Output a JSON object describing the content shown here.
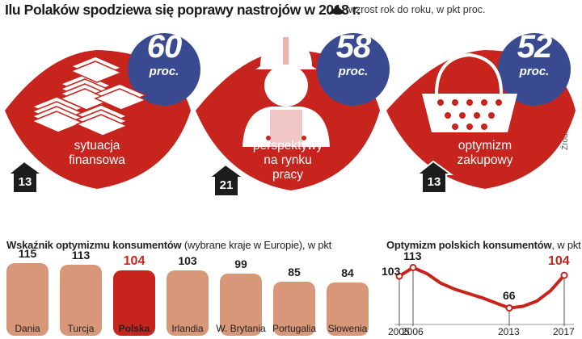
{
  "header": {
    "title": "Ilu Polaków spodziewa się poprawy nastrojów w 2018 r.",
    "legend": "wzrost rok do roku, w pkt proc.",
    "source": "Źródło: Nielsen"
  },
  "colors": {
    "red": "#c8241e",
    "navy": "#3a4a90",
    "dark": "#1c1c1c",
    "bar": "#d9977a",
    "bar_highlight": "#c8241e"
  },
  "blobs": [
    {
      "label_line1": "sytuacja",
      "label_line2": "finansowa",
      "label_line3": "",
      "value": "60",
      "unit": "proc.",
      "change": "13",
      "icon": "money-stack-icon"
    },
    {
      "label_line1": "perspektywy",
      "label_line2": "na rynku",
      "label_line3": "pracy",
      "value": "58",
      "unit": "proc.",
      "change": "21",
      "icon": "worker-icon"
    },
    {
      "label_line1": "optymizm",
      "label_line2": "zakupowy",
      "label_line3": "",
      "value": "52",
      "unit": "proc.",
      "change": "13",
      "icon": "shopping-basket-icon"
    }
  ],
  "bar_section": {
    "title_bold": "Wskaźnik optymizmu konsumentów",
    "title_rest": " (wybrane kraje w Europie), w pkt"
  },
  "line_section": {
    "title_bold": "Optymizm polskich konsumentów",
    "title_rest": ", w pkt"
  },
  "chart_data": [
    {
      "type": "bar",
      "title": "Wskaźnik optymizmu konsumentów (wybrane kraje w Europie), w pkt",
      "categories": [
        "Dania",
        "Turcja",
        "Polska",
        "Irlandia",
        "W. Brytania",
        "Portugalia",
        "Słowenia"
      ],
      "values": [
        115,
        113,
        104,
        103,
        99,
        85,
        84
      ],
      "highlight": "Polska",
      "ylim": [
        0,
        125
      ]
    },
    {
      "type": "line",
      "title": "Optymizm polskich konsumentów, w pkt",
      "x": [
        2005,
        2006,
        2007,
        2008,
        2009,
        2010,
        2011,
        2012,
        2013,
        2014,
        2015,
        2016,
        2017
      ],
      "y": [
        103,
        113,
        106,
        95,
        88,
        83,
        78,
        72,
        66,
        68,
        74,
        86,
        104
      ],
      "labeled_points": [
        {
          "x": 2005,
          "label": "103"
        },
        {
          "x": 2006,
          "label": "113"
        },
        {
          "x": 2013,
          "label": "66"
        },
        {
          "x": 2017,
          "label": "104"
        }
      ],
      "xticks": [
        "2005",
        "2006",
        "2013",
        "2017"
      ],
      "ylim": [
        60,
        120
      ]
    }
  ]
}
